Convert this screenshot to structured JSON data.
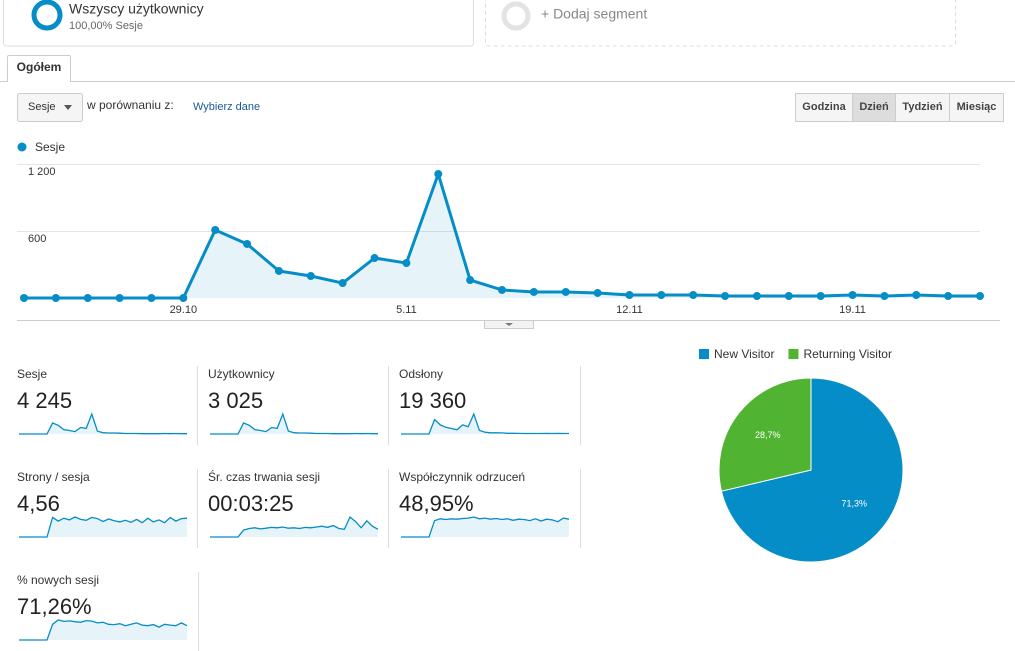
{
  "segments": {
    "active": {
      "name": "Wszyscy użytkownicy",
      "detail": "100,00% Sesje"
    },
    "add": "+ Dodaj segment"
  },
  "tabs": [
    "Ogółem"
  ],
  "controls": {
    "metric": "Sesje",
    "compare_label": "w porównaniu z:",
    "compare_link": "Wybierz dane",
    "periods": [
      "Godzina",
      "Dzień",
      "Tydzień",
      "Miesiąc"
    ],
    "active_period": 1
  },
  "chart_data": [
    {
      "type": "line",
      "categories": [
        null,
        null,
        null,
        null,
        null,
        "29.10",
        null,
        null,
        null,
        null,
        null,
        null,
        "5.11",
        null,
        null,
        null,
        null,
        null,
        null,
        "12.11",
        null,
        null,
        null,
        null,
        null,
        null,
        "19.11",
        null,
        null,
        null,
        null
      ],
      "series": [
        {
          "name": "Sesje",
          "color": "#058dc7",
          "values": [
            0,
            0,
            0,
            0,
            0,
            0,
            609,
            484,
            242,
            197,
            134,
            358,
            313,
            1110,
            161,
            72,
            54,
            54,
            45,
            27,
            27,
            27,
            18,
            18,
            18,
            18,
            27,
            18,
            27,
            18,
            18
          ]
        }
      ],
      "ylim": [
        0,
        1200
      ],
      "yticks": [
        600,
        {
          "value": 1200,
          "label": "1 200"
        }
      ],
      "grid": true
    },
    {
      "type": "pie",
      "categories": [
        "New Visitor",
        "Returning Visitor"
      ],
      "colors": [
        "#058dc7",
        "#50b432"
      ],
      "values": [
        71.3,
        28.7
      ],
      "value_labels": [
        "71,3%",
        "28,7%"
      ],
      "legend": "top"
    }
  ],
  "metrics": [
    {
      "label": "Sesje",
      "value": "4 245"
    },
    {
      "label": "Użytkownicy",
      "value": "3 025",
      "spark": [
        0,
        0,
        0,
        0,
        0,
        0,
        440,
        350,
        175,
        140,
        95,
        260,
        225,
        800,
        115,
        52,
        40,
        40,
        33,
        20,
        20,
        20,
        13,
        13,
        13,
        13,
        20,
        13,
        20,
        13,
        13
      ]
    },
    {
      "label": "Odsłony",
      "value": "19 360",
      "spark": [
        0,
        0,
        0,
        0,
        0,
        0,
        2400,
        1500,
        1100,
        900,
        700,
        1500,
        1200,
        3300,
        600,
        300,
        200,
        200,
        180,
        120,
        120,
        100,
        80,
        80,
        80,
        80,
        100,
        80,
        100,
        80,
        80
      ]
    },
    {
      "label": "Strony / sesja",
      "value": "4,56",
      "spark": [
        0,
        0,
        0,
        0,
        0,
        0,
        4.8,
        3.9,
        4.6,
        4.2,
        4.9,
        4.3,
        4.1,
        4.8,
        4.5,
        3.8,
        4.4,
        4.0,
        3.7,
        4.1,
        3.6,
        4.3,
        3.5,
        4.6,
        3.7,
        4.2,
        3.5,
        4.8,
        3.9,
        4.5,
        4.6
      ]
    },
    {
      "label": "Śr. czas trwania sesji",
      "value": "00:03:25",
      "spark": [
        0,
        0,
        0,
        0,
        0,
        0,
        90,
        110,
        120,
        105,
        115,
        125,
        120,
        130,
        115,
        120,
        110,
        125,
        120,
        130,
        140,
        125,
        150,
        110,
        100,
        260,
        200,
        120,
        210,
        140,
        100
      ]
    },
    {
      "label": "Współczynnik odrzuceń",
      "value": "48,95%",
      "spark": [
        0,
        0,
        0,
        0,
        0,
        0,
        45,
        50,
        48,
        50,
        49,
        51,
        52,
        55,
        50,
        52,
        49,
        51,
        48,
        50,
        46,
        49,
        48,
        45,
        50,
        44,
        49,
        47,
        42,
        52,
        49
      ]
    },
    {
      "label": "% nowych sesji",
      "value": "71,26%",
      "spark": [
        0,
        0,
        0,
        0,
        0,
        0,
        55,
        70,
        65,
        67,
        64,
        62,
        68,
        66,
        60,
        62,
        55,
        54,
        57,
        50,
        55,
        60,
        52,
        50,
        54,
        45,
        55,
        52,
        50,
        60,
        50
      ]
    }
  ]
}
